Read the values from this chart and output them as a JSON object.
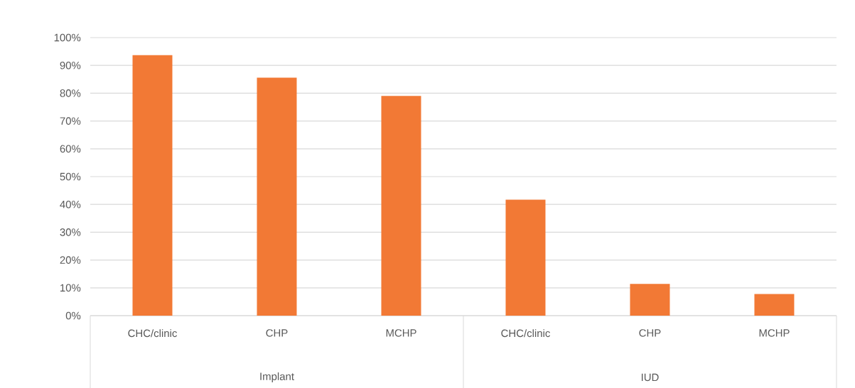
{
  "chart_data": {
    "type": "bar",
    "categories": [
      "CHC/clinic",
      "CHP",
      "MCHP",
      "CHC/clinic",
      "CHP",
      "MCHP"
    ],
    "values": [
      93.7,
      85.6,
      79.0,
      41.7,
      11.4,
      7.8
    ],
    "color": "#f27935",
    "ylim": [
      0,
      100
    ],
    "yticks": [
      {
        "value": 0,
        "label": "0%"
      },
      {
        "value": 10,
        "label": "10%"
      },
      {
        "value": 20,
        "label": "20%"
      },
      {
        "value": 30,
        "label": "30%"
      },
      {
        "value": 40,
        "label": "40%"
      },
      {
        "value": 50,
        "label": "50%"
      },
      {
        "value": 60,
        "label": "60%"
      },
      {
        "value": 70,
        "label": "70%"
      },
      {
        "value": 80,
        "label": "80%"
      },
      {
        "value": 90,
        "label": "90%"
      },
      {
        "value": 100,
        "label": "100%"
      }
    ],
    "grid": "y",
    "annotations": [
      "Implant",
      "IUD"
    ]
  }
}
